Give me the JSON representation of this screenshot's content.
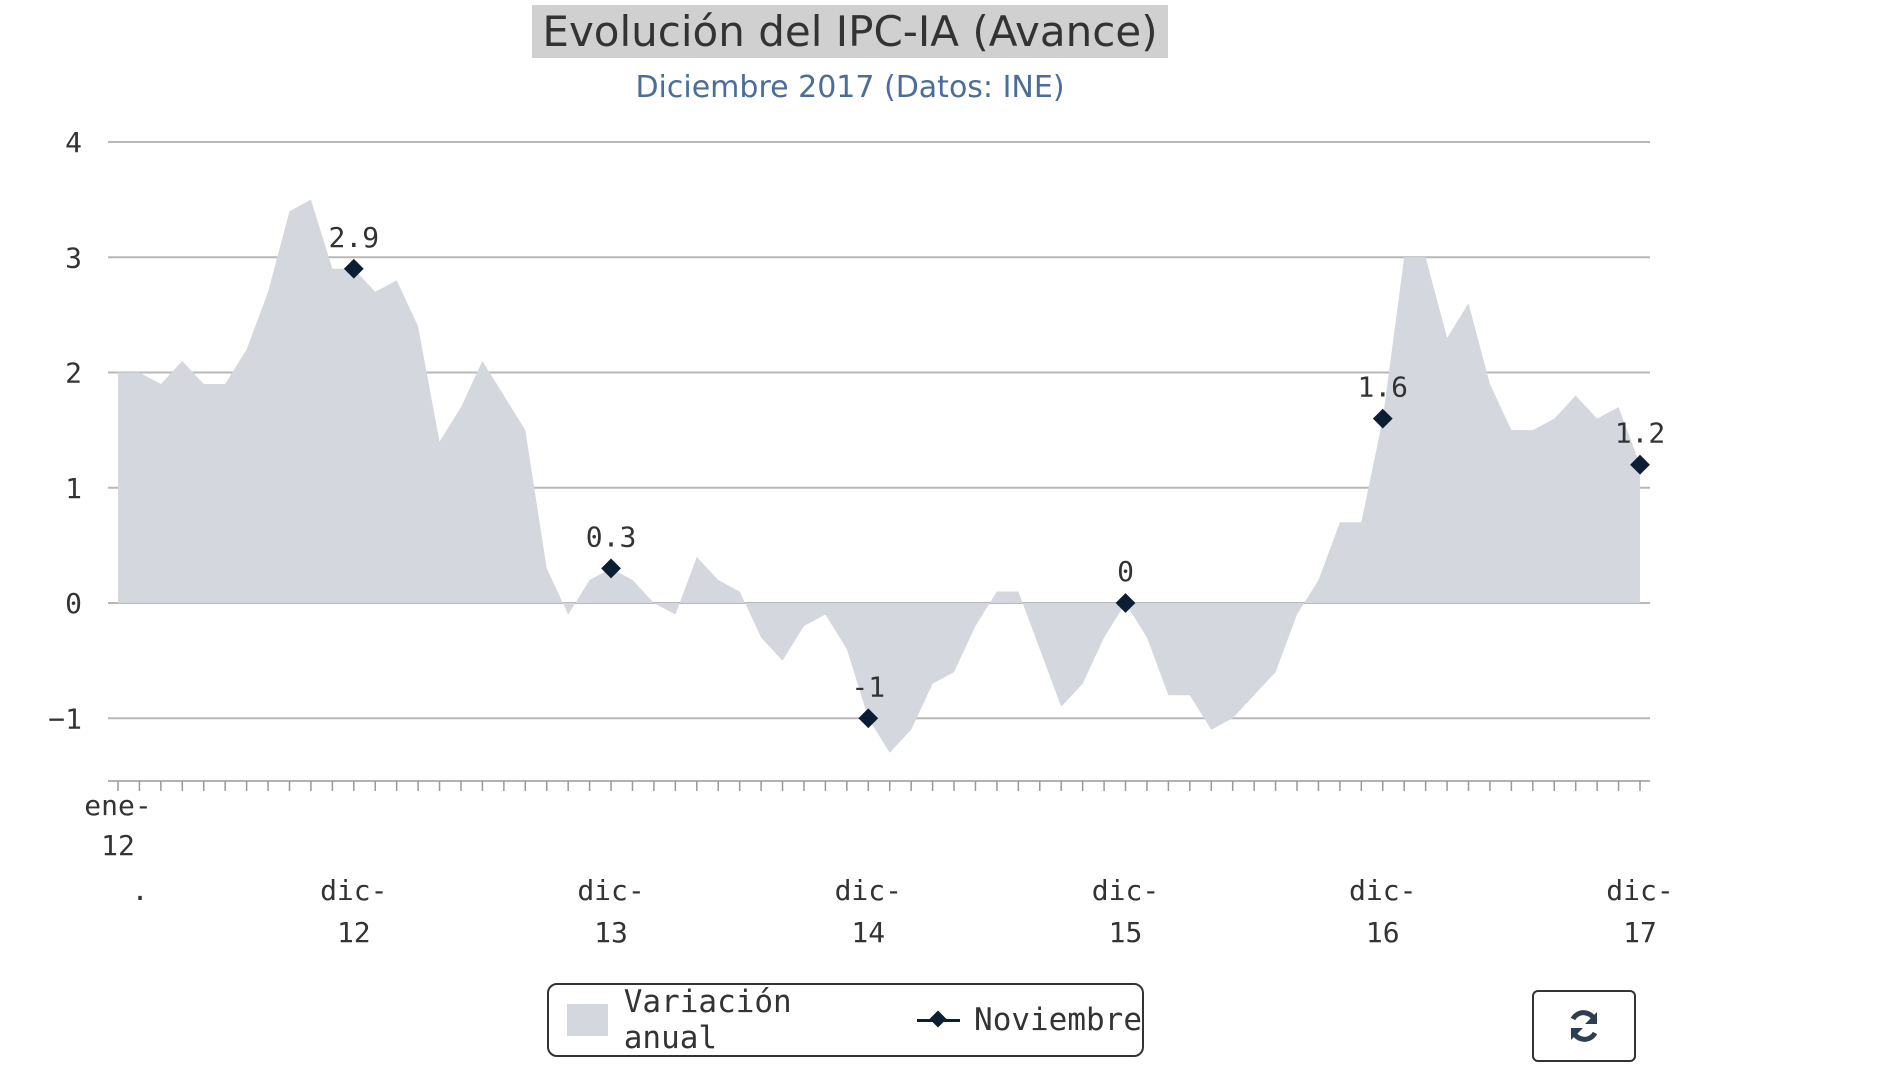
{
  "chart_data": {
    "type": "area",
    "title": "Evolución del IPC-IA (Avance)",
    "subtitle": "Diciembre 2017 (Datos: INE)",
    "y_ticks": [
      4,
      3,
      2,
      1,
      0,
      -1
    ],
    "ylim": [
      -1.6,
      4
    ],
    "x_range": [
      "2012-01",
      "2017-12"
    ],
    "x_tick_labels": [
      {
        "line1": "ene-",
        "line2": "12",
        "line3": "."
      },
      {
        "line1": "dic-",
        "line2": "12"
      },
      {
        "line1": "dic-",
        "line2": "13"
      },
      {
        "line1": "dic-",
        "line2": "14"
      },
      {
        "line1": "dic-",
        "line2": "15"
      },
      {
        "line1": "dic-",
        "line2": "16"
      },
      {
        "line1": "dic-",
        "line2": "17"
      }
    ],
    "grid": true,
    "legend_placement": "bottom-center",
    "series": [
      {
        "name": "Variación anual",
        "type": "area",
        "color": "#d4d7dd",
        "x": [
          "2012-01",
          "2012-02",
          "2012-03",
          "2012-04",
          "2012-05",
          "2012-06",
          "2012-07",
          "2012-08",
          "2012-09",
          "2012-10",
          "2012-11",
          "2012-12",
          "2013-01",
          "2013-02",
          "2013-03",
          "2013-04",
          "2013-05",
          "2013-06",
          "2013-07",
          "2013-08",
          "2013-09",
          "2013-10",
          "2013-11",
          "2013-12",
          "2014-01",
          "2014-02",
          "2014-03",
          "2014-04",
          "2014-05",
          "2014-06",
          "2014-07",
          "2014-08",
          "2014-09",
          "2014-10",
          "2014-11",
          "2014-12",
          "2015-01",
          "2015-02",
          "2015-03",
          "2015-04",
          "2015-05",
          "2015-06",
          "2015-07",
          "2015-08",
          "2015-09",
          "2015-10",
          "2015-11",
          "2015-12",
          "2016-01",
          "2016-02",
          "2016-03",
          "2016-04",
          "2016-05",
          "2016-06",
          "2016-07",
          "2016-08",
          "2016-09",
          "2016-10",
          "2016-11",
          "2016-12",
          "2017-01",
          "2017-02",
          "2017-03",
          "2017-04",
          "2017-05",
          "2017-06",
          "2017-07",
          "2017-08",
          "2017-09",
          "2017-10",
          "2017-11",
          "2017-12"
        ],
        "values": [
          2.0,
          2.0,
          1.9,
          2.1,
          1.9,
          1.9,
          2.2,
          2.7,
          3.4,
          3.5,
          2.9,
          2.9,
          2.7,
          2.8,
          2.4,
          1.4,
          1.7,
          2.1,
          1.8,
          1.5,
          0.3,
          -0.1,
          0.2,
          0.3,
          0.2,
          0.0,
          -0.1,
          0.4,
          0.2,
          0.1,
          -0.3,
          -0.5,
          -0.2,
          -0.1,
          -0.4,
          -1.0,
          -1.3,
          -1.1,
          -0.7,
          -0.6,
          -0.2,
          0.1,
          0.1,
          -0.4,
          -0.9,
          -0.7,
          -0.3,
          0.0,
          -0.3,
          -0.8,
          -0.8,
          -1.1,
          -1.0,
          -0.8,
          -0.6,
          -0.1,
          0.2,
          0.7,
          0.7,
          1.6,
          3.0,
          3.0,
          2.3,
          2.6,
          1.9,
          1.5,
          1.5,
          1.6,
          1.8,
          1.6,
          1.7,
          1.2
        ]
      },
      {
        "name": "Noviembre",
        "type": "line",
        "color": "#0c1e33",
        "x": [
          "2012-12",
          "2013-12",
          "2014-12",
          "2015-12",
          "2016-12",
          "2017-12"
        ],
        "values": [
          2.9,
          0.3,
          -1.0,
          0.0,
          1.6,
          1.2
        ],
        "labels": [
          "2.9",
          "0.3",
          "-1",
          "0",
          "1.6",
          "1.2"
        ]
      }
    ]
  },
  "legend": {
    "items": [
      {
        "label": "Variación anual"
      },
      {
        "label": "Noviembre"
      }
    ]
  },
  "controls": {
    "refresh_icon": "refresh-icon"
  }
}
